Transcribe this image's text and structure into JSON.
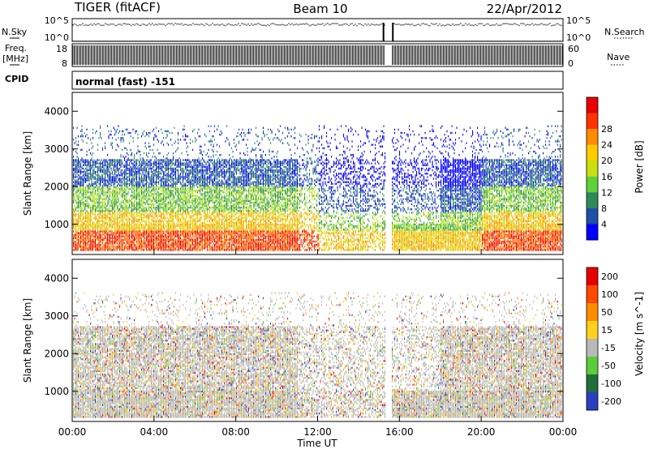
{
  "header": {
    "station": "TIGER (fitACF)",
    "beam": "Beam 10",
    "date": "22/Apr/2012"
  },
  "noise_panel": {
    "left_label": "N.Sky",
    "right_label": "N.Search",
    "left_ticks": [
      "10^5",
      "10^0"
    ],
    "right_ticks": [
      "10^5",
      "10^0"
    ]
  },
  "freq_panel": {
    "left_label_1": "Freq.",
    "left_label_2": "[MHz]",
    "right_label": "Nave",
    "left_ticks": [
      "18",
      "8"
    ],
    "right_ticks": [
      "60",
      "0"
    ]
  },
  "cpid_panel": {
    "label": "CPID",
    "text": "normal (fast) -151"
  },
  "colors": {
    "power": [
      "#0000ff",
      "#1f4fa6",
      "#2e8b57",
      "#5fd13a",
      "#c8e00f",
      "#ffcc00",
      "#ff8c00",
      "#ff3300",
      "#e60000"
    ],
    "velocity": [
      "#2a3fbf",
      "#206e3b",
      "#5acd3a",
      "#b9b9b9",
      "#ffd11a",
      "#ff8c00",
      "#ff4800",
      "#e60000"
    ]
  },
  "chart_data": [
    {
      "type": "heatmap",
      "name": "power",
      "xlabel": "",
      "ylabel": "Slant Range [km]",
      "x_range_hours": [
        0,
        24
      ],
      "ylim": [
        200,
        4500
      ],
      "yticks": [
        "1000",
        "2000",
        "3000",
        "4000"
      ],
      "colorbar_label": "Power [dB]",
      "colorbar_ticks": [
        "4",
        "8",
        "12",
        "16",
        "20",
        "24",
        "28"
      ],
      "data_gap_hours": [
        15.3,
        15.6
      ]
    },
    {
      "type": "heatmap",
      "name": "velocity",
      "xlabel": "Time UT",
      "ylabel": "Slant Range [km]",
      "x_range_hours": [
        0,
        24
      ],
      "ylim": [
        200,
        4500
      ],
      "xticks": [
        "00:00",
        "04:00",
        "08:00",
        "12:00",
        "16:00",
        "20:00",
        "00:00"
      ],
      "yticks": [
        "1000",
        "2000",
        "3000",
        "4000"
      ],
      "colorbar_label": "Velocity [m s^-1]",
      "colorbar_ticks": [
        "200",
        "100",
        "50",
        "15",
        "-15",
        "-50",
        "-100",
        "-200"
      ],
      "data_gap_hours": [
        15.3,
        15.6
      ]
    }
  ]
}
